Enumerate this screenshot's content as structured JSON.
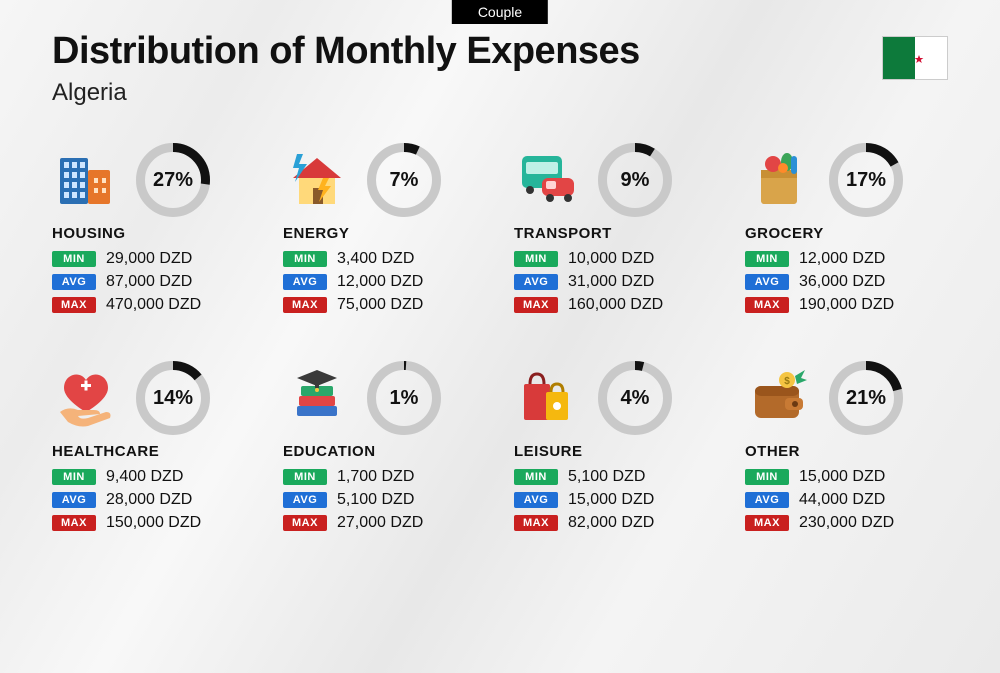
{
  "tab_label": "Couple",
  "title": "Distribution of Monthly Expenses",
  "country": "Algeria",
  "currency": "DZD",
  "badge_labels": {
    "min": "MIN",
    "avg": "AVG",
    "max": "MAX"
  },
  "badge_colors": {
    "min": "#1aa95c",
    "avg": "#1f6fd6",
    "max": "#c9201f"
  },
  "gauge": {
    "size": 74,
    "stroke": 9,
    "track_color": "#c9c9c9",
    "arc_color": "#111111"
  },
  "flag": {
    "green": "#0d7a3b",
    "white": "#ffffff",
    "red": "#d21034"
  },
  "categories": [
    {
      "name": "HOUSING",
      "pct": 27,
      "min": "29,000",
      "avg": "87,000",
      "max": "470,000",
      "icon": "buildings"
    },
    {
      "name": "ENERGY",
      "pct": 7,
      "min": "3,400",
      "avg": "12,000",
      "max": "75,000",
      "icon": "house-bolt"
    },
    {
      "name": "TRANSPORT",
      "pct": 9,
      "min": "10,000",
      "avg": "31,000",
      "max": "160,000",
      "icon": "bus-car"
    },
    {
      "name": "GROCERY",
      "pct": 17,
      "min": "12,000",
      "avg": "36,000",
      "max": "190,000",
      "icon": "grocery-bag"
    },
    {
      "name": "HEALTHCARE",
      "pct": 14,
      "min": "9,400",
      "avg": "28,000",
      "max": "150,000",
      "icon": "heart-hand"
    },
    {
      "name": "EDUCATION",
      "pct": 1,
      "min": "1,700",
      "avg": "5,100",
      "max": "27,000",
      "icon": "grad-books"
    },
    {
      "name": "LEISURE",
      "pct": 4,
      "min": "5,100",
      "avg": "15,000",
      "max": "82,000",
      "icon": "shopping-bags"
    },
    {
      "name": "OTHER",
      "pct": 21,
      "min": "15,000",
      "avg": "44,000",
      "max": "230,000",
      "icon": "wallet"
    }
  ]
}
